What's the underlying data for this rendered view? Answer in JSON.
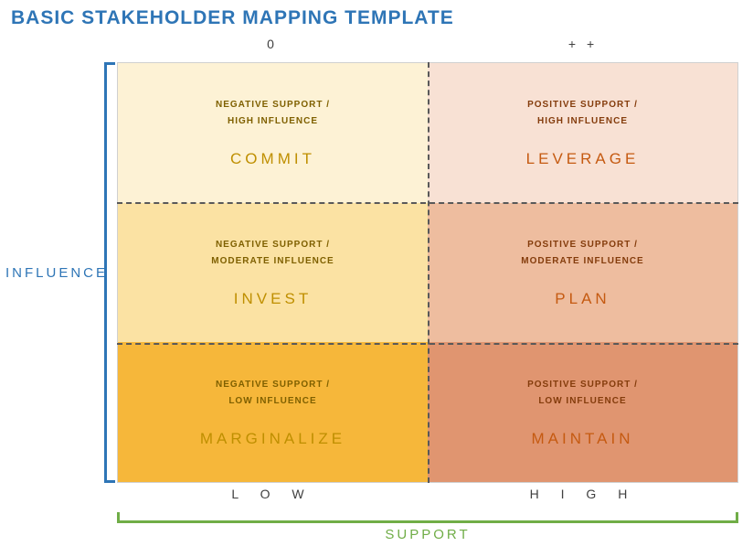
{
  "title": "BASIC STAKEHOLDER MAPPING TEMPLATE",
  "axes": {
    "y_label": "INFLUENCE",
    "x_label": "SUPPORT",
    "y_color": "#2e75b6",
    "x_color": "#70ad47",
    "top_left": "0",
    "top_right": "+ +",
    "bottom_left": "L O W",
    "bottom_right": "H I G H"
  },
  "grid": {
    "type": "matrix",
    "rows": 3,
    "cols": 2,
    "divider_color": "#595959",
    "border_color": "#d0d0d0",
    "cells": [
      {
        "r": 0,
        "c": 0,
        "bg": "#fdf2d5",
        "desc_color": "#7f6000",
        "action_color": "#bf8f00",
        "desc_l1": "NEGATIVE SUPPORT /",
        "desc_l2": "HIGH INFLUENCE",
        "action": "COMMIT"
      },
      {
        "r": 0,
        "c": 1,
        "bg": "#f8e1d4",
        "desc_color": "#843c0c",
        "action_color": "#c55a11",
        "desc_l1": "POSITIVE SUPPORT /",
        "desc_l2": "HIGH INFLUENCE",
        "action": "LEVERAGE"
      },
      {
        "r": 1,
        "c": 0,
        "bg": "#fbe2a3",
        "desc_color": "#7f6000",
        "action_color": "#bf8f00",
        "desc_l1": "NEGATIVE SUPPORT /",
        "desc_l2": "MODERATE INFLUENCE",
        "action": "INVEST"
      },
      {
        "r": 1,
        "c": 1,
        "bg": "#eebd9f",
        "desc_color": "#843c0c",
        "action_color": "#c55a11",
        "desc_l1": "POSITIVE SUPPORT /",
        "desc_l2": "MODERATE INFLUENCE",
        "action": "PLAN"
      },
      {
        "r": 2,
        "c": 0,
        "bg": "#f6b73a",
        "desc_color": "#7f6000",
        "action_color": "#bf8f00",
        "desc_l1": "NEGATIVE SUPPORT /",
        "desc_l2": "LOW INFLUENCE",
        "action": "MARGINALIZE"
      },
      {
        "r": 2,
        "c": 1,
        "bg": "#e09570",
        "desc_color": "#843c0c",
        "action_color": "#c55a11",
        "desc_l1": "POSITIVE SUPPORT /",
        "desc_l2": "LOW INFLUENCE",
        "action": "MAINTAIN"
      }
    ]
  },
  "typography": {
    "title_fontsize": 21,
    "axis_fontsize": 15,
    "desc_fontsize": 10,
    "action_fontsize": 17
  }
}
